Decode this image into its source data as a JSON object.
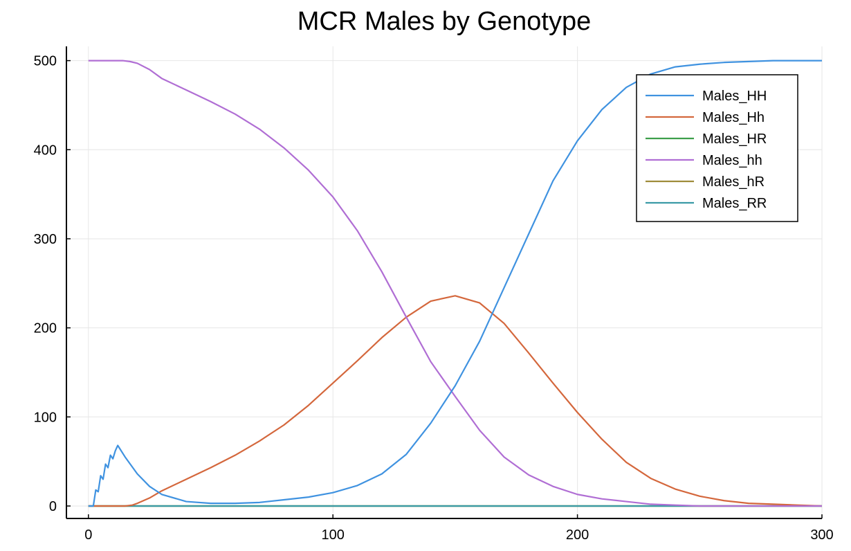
{
  "chart_data": {
    "type": "line",
    "title": "MCR Males by Genotype",
    "xlabel": "",
    "ylabel": "",
    "xlim": [
      -9,
      300
    ],
    "ylim": [
      -14,
      516
    ],
    "xticks": [
      0,
      100,
      200,
      300
    ],
    "xtick_labels": [
      "0",
      "100",
      "200",
      "300"
    ],
    "yticks": [
      0,
      100,
      200,
      300,
      400,
      500
    ],
    "ytick_labels": [
      "0",
      "100",
      "200",
      "300",
      "400",
      "500"
    ],
    "grid": true,
    "legend_position": "top-right",
    "series": [
      {
        "name": "Males_HH",
        "color": "#3f92e0",
        "x": [
          0,
          2,
          3,
          4,
          5,
          6,
          7,
          8,
          9,
          10,
          11,
          12,
          15,
          20,
          25,
          30,
          40,
          50,
          60,
          70,
          80,
          90,
          100,
          110,
          120,
          130,
          140,
          150,
          160,
          170,
          180,
          190,
          200,
          210,
          220,
          230,
          240,
          250,
          260,
          270,
          280,
          290,
          300
        ],
        "y": [
          0,
          0,
          18,
          16,
          34,
          30,
          47,
          43,
          57,
          53,
          62,
          68,
          55,
          36,
          22,
          13,
          5,
          3,
          3,
          4,
          7,
          10,
          15,
          23,
          36,
          58,
          93,
          135,
          185,
          245,
          305,
          365,
          410,
          445,
          470,
          485,
          493,
          496,
          498,
          499,
          500,
          500,
          500
        ]
      },
      {
        "name": "Males_Hh",
        "color": "#d4673c",
        "x": [
          0,
          10,
          15,
          18,
          20,
          25,
          30,
          40,
          50,
          60,
          70,
          80,
          90,
          100,
          110,
          120,
          130,
          140,
          150,
          160,
          170,
          180,
          190,
          200,
          210,
          220,
          230,
          240,
          250,
          260,
          270,
          280,
          290,
          300
        ],
        "y": [
          0,
          0,
          0,
          1,
          3,
          9,
          17,
          30,
          43,
          57,
          73,
          91,
          113,
          138,
          163,
          189,
          212,
          230,
          236,
          228,
          205,
          172,
          138,
          105,
          75,
          49,
          31,
          19,
          11,
          6,
          3,
          2,
          1,
          0
        ]
      },
      {
        "name": "Males_HR",
        "color": "#3d9e4a",
        "x": [
          0,
          300
        ],
        "y": [
          0,
          0
        ]
      },
      {
        "name": "Males_hh",
        "color": "#b06ed4",
        "x": [
          0,
          10,
          14,
          17,
          20,
          25,
          30,
          40,
          50,
          60,
          70,
          80,
          90,
          100,
          110,
          120,
          130,
          140,
          150,
          160,
          170,
          180,
          190,
          200,
          210,
          220,
          230,
          240,
          250,
          260,
          270,
          280,
          290,
          300
        ],
        "y": [
          500,
          500,
          500,
          499,
          497,
          490,
          480,
          467,
          454,
          440,
          423,
          402,
          377,
          347,
          309,
          263,
          212,
          162,
          123,
          85,
          55,
          35,
          22,
          13,
          8,
          5,
          2,
          1,
          0,
          0,
          0,
          0,
          0,
          0
        ]
      },
      {
        "name": "Males_hR",
        "color": "#9e8c3a",
        "x": [
          0,
          300
        ],
        "y": [
          0,
          0
        ]
      },
      {
        "name": "Males_RR",
        "color": "#3a9ba6",
        "x": [
          0,
          300
        ],
        "y": [
          0,
          0
        ]
      }
    ]
  }
}
